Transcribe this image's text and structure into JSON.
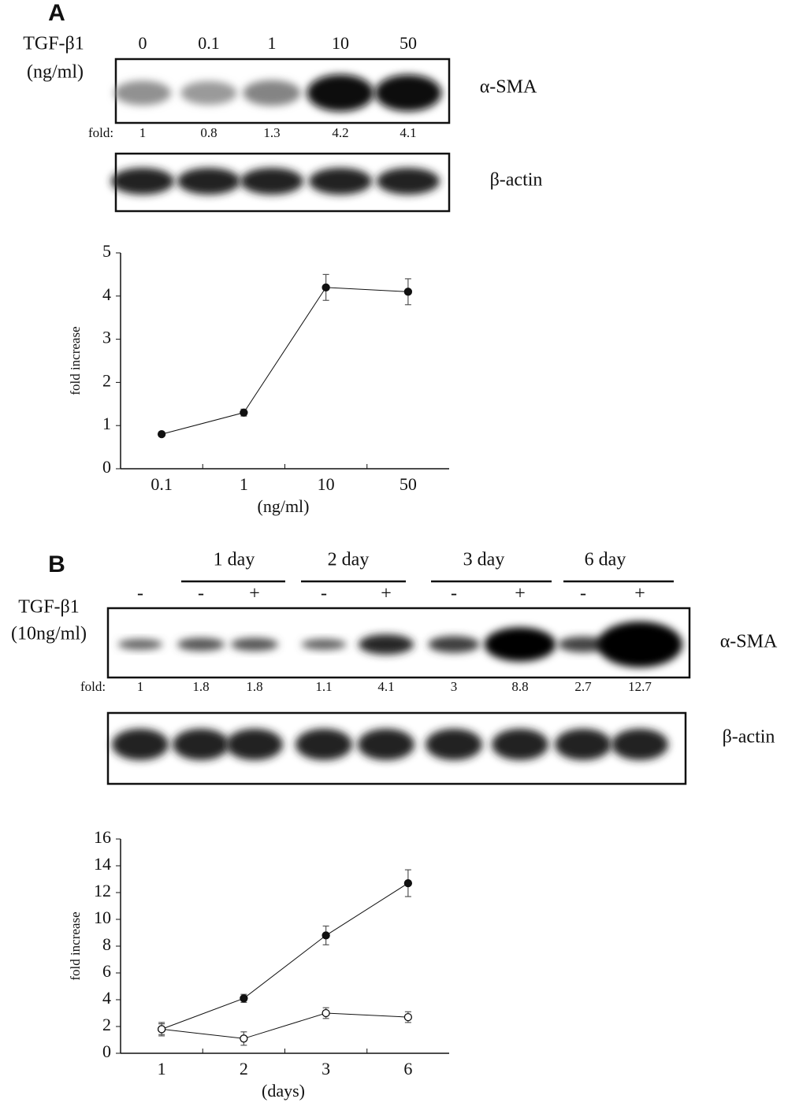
{
  "blot_a": {
    "panel": "A",
    "treatment": "TGF-β1",
    "unit": "(ng/ml)",
    "doses": [
      "0",
      "0.1",
      "1",
      "10",
      "50"
    ],
    "fold_label": "fold:",
    "folds": [
      1,
      0.8,
      1.3,
      4.2,
      4.1
    ],
    "proteins": [
      "α-SMA",
      "β-actin"
    ]
  },
  "blot_b": {
    "panel": "B",
    "treatment": "TGF-β1",
    "unit": "(10ng/ml)",
    "groups": [
      "1 day",
      "2 day",
      "3 day",
      "6 day"
    ],
    "signs": [
      "-",
      "-",
      "+",
      "-",
      "+",
      "-",
      "+",
      "-",
      "+"
    ],
    "fold_label": "fold:",
    "folds": [
      1,
      1.8,
      1.8,
      1.1,
      4.1,
      3,
      8.8,
      2.7,
      12.7
    ],
    "proteins": [
      "α-SMA",
      "β-actin"
    ]
  },
  "chart_data": [
    {
      "type": "line",
      "ylabel": "fold increase",
      "xlabel": "(ng/ml)",
      "categories": [
        "0.1",
        "1",
        "10",
        "50"
      ],
      "values": [
        0.8,
        1.3,
        4.2,
        4.1
      ],
      "errors": [
        0.05,
        0.08,
        0.3,
        0.3
      ],
      "marker": "filled",
      "color": "#111111",
      "ylim": [
        0,
        5
      ],
      "yticks": [
        0,
        1,
        2,
        3,
        4,
        5
      ]
    },
    {
      "type": "line",
      "ylabel": "fold increase",
      "xlabel": "(days)",
      "categories": [
        "1",
        "2",
        "3",
        "6"
      ],
      "series": [
        {
          "color": "#111111",
          "marker": "filled",
          "values": [
            1.8,
            4.1,
            8.8,
            12.7
          ],
          "errors": [
            0.5,
            0.3,
            0.7,
            1.0
          ]
        },
        {
          "color": "#111111",
          "marker": "open",
          "values": [
            1.8,
            1.1,
            3,
            2.7
          ],
          "errors": [
            0.4,
            0.5,
            0.4,
            0.4
          ]
        }
      ],
      "ylim": [
        0,
        16
      ],
      "yticks": [
        0,
        2,
        4,
        6,
        8,
        10,
        12,
        14,
        16
      ]
    }
  ]
}
